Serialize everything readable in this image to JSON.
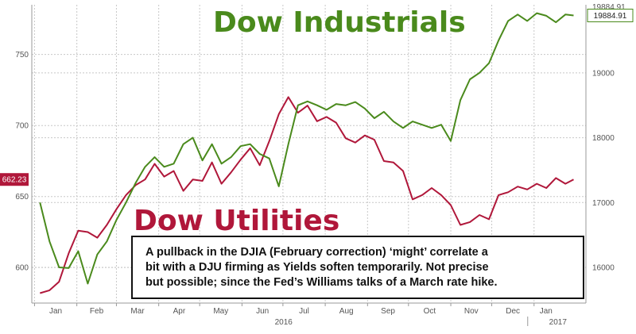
{
  "chart_data": {
    "type": "line",
    "title": "Dow Industrials",
    "subtitle": "Dow Utilities",
    "x": [
      "2016-01-05",
      "2016-01-12",
      "2016-01-19",
      "2016-01-26",
      "2016-02-02",
      "2016-02-09",
      "2016-02-16",
      "2016-02-23",
      "2016-03-01",
      "2016-03-08",
      "2016-03-15",
      "2016-03-22",
      "2016-03-29",
      "2016-04-05",
      "2016-04-12",
      "2016-04-19",
      "2016-04-26",
      "2016-05-03",
      "2016-05-10",
      "2016-05-17",
      "2016-05-24",
      "2016-05-31",
      "2016-06-07",
      "2016-06-14",
      "2016-06-21",
      "2016-06-28",
      "2016-07-05",
      "2016-07-12",
      "2016-07-19",
      "2016-07-26",
      "2016-08-02",
      "2016-08-09",
      "2016-08-16",
      "2016-08-23",
      "2016-08-30",
      "2016-09-06",
      "2016-09-13",
      "2016-09-20",
      "2016-09-27",
      "2016-10-04",
      "2016-10-11",
      "2016-10-18",
      "2016-10-25",
      "2016-11-01",
      "2016-11-08",
      "2016-11-15",
      "2016-11-22",
      "2016-11-29",
      "2016-12-06",
      "2016-12-13",
      "2016-12-20",
      "2016-12-27",
      "2017-01-03",
      "2017-01-10",
      "2017-01-17",
      "2017-01-24",
      "2017-01-30"
    ],
    "x_tick_labels": [
      "Jan",
      "Feb",
      "Mar",
      "Apr",
      "May",
      "Jun",
      "Jul",
      "Aug",
      "Sep",
      "Oct",
      "Nov",
      "Dec",
      "Jan"
    ],
    "x_tick_dates": [
      "2016-01-01",
      "2016-02-01",
      "2016-03-01",
      "2016-04-01",
      "2016-05-01",
      "2016-06-01",
      "2016-07-01",
      "2016-08-01",
      "2016-09-01",
      "2016-10-01",
      "2016-11-01",
      "2016-12-01",
      "2017-01-01"
    ],
    "x_year_labels": [
      "2016",
      "2017"
    ],
    "series": [
      {
        "name": "Dow Utilities",
        "axis": "left",
        "color": "#b0173a",
        "last_value_label": "662.23",
        "values": [
          582,
          584,
          590,
          610,
          626,
          625,
          621,
          630,
          641,
          651,
          658,
          662,
          673,
          664,
          668,
          654,
          662,
          661,
          674,
          659,
          667,
          676,
          684,
          672,
          689,
          708,
          720,
          709,
          714,
          703,
          706,
          702,
          691,
          688,
          693,
          690,
          675,
          674,
          668,
          648,
          651,
          656,
          651,
          644,
          630,
          632,
          637,
          634,
          651,
          653,
          657,
          655,
          659,
          656,
          663,
          659,
          662
        ]
      },
      {
        "name": "Dow Industrials",
        "axis": "right",
        "color": "#4a8a1c",
        "last_value_label": "19884.91",
        "values": [
          17000,
          16400,
          16000,
          15990,
          16250,
          15750,
          16200,
          16400,
          16730,
          17000,
          17300,
          17550,
          17700,
          17550,
          17600,
          17900,
          18000,
          17650,
          17900,
          17600,
          17700,
          17870,
          17900,
          17750,
          17680,
          17250,
          17900,
          18500,
          18560,
          18500,
          18430,
          18520,
          18500,
          18550,
          18450,
          18300,
          18400,
          18250,
          18150,
          18250,
          18200,
          18150,
          18200,
          17950,
          18580,
          18900,
          19000,
          19150,
          19500,
          19800,
          19900,
          19800,
          19920,
          19880,
          19780,
          19900,
          19884.91
        ]
      }
    ],
    "left_axis": {
      "ylim": [
        575,
        785
      ],
      "ticks": [
        600,
        650,
        700,
        750
      ]
    },
    "right_axis": {
      "ylim": [
        15450,
        20050
      ],
      "ticks": [
        16000,
        17000,
        18000,
        19000
      ],
      "top_tick_label": "19884.91"
    },
    "grid": true,
    "legend": "none"
  },
  "annotation": {
    "lines": [
      "A pullback in the DJIA (February correction) ‘might’ correlate a",
      "bit with a DJU firming as Yields soften temporarily. Not precise",
      "but possible; since the Fed’s Williams talks of a March rate hike."
    ]
  },
  "colors": {
    "industrials": "#4a8a1c",
    "utilities": "#b0173a",
    "grid": "#c8c8c8"
  }
}
